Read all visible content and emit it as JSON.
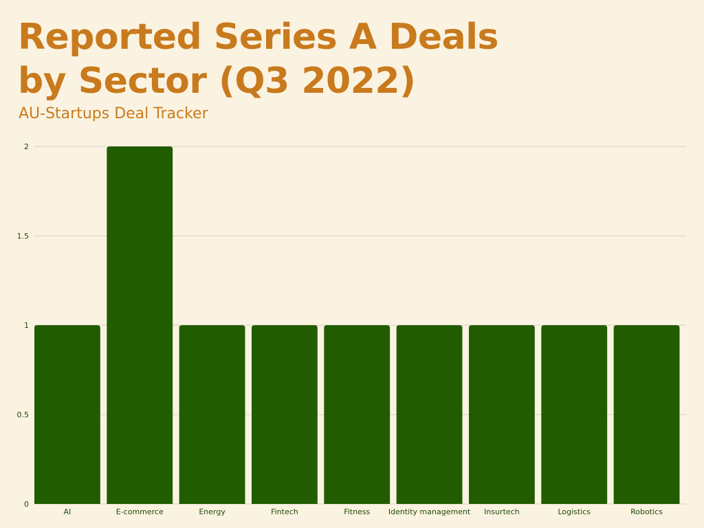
{
  "title_lines": [
    "Reported Series A Deals",
    "by Sector (Q3 2022)"
  ],
  "subtitle": "AU-Startups Deal Tracker",
  "colors": {
    "background": "#fbf3e1",
    "title": "#c87a1d",
    "bar": "#225c00",
    "grid": "#d9d2bf",
    "tick_text": "#1f4a0a"
  },
  "chart_data": {
    "type": "bar",
    "categories": [
      "AI",
      "E-commerce",
      "Energy",
      "Fintech",
      "Fitness",
      "Identity management",
      "Insurtech",
      "Logistics",
      "Robotics"
    ],
    "values": [
      1,
      2,
      1,
      1,
      1,
      1,
      1,
      1,
      1
    ],
    "title": "Reported Series A Deals by Sector (Q3 2022)",
    "subtitle": "AU-Startups Deal Tracker",
    "ylim": [
      0,
      2
    ],
    "yticks": [
      0,
      0.5,
      1,
      1.5,
      2
    ],
    "ytick_labels": [
      "0",
      "0.5",
      "1",
      "1.5",
      "2"
    ],
    "grid": true,
    "legend": "none"
  }
}
